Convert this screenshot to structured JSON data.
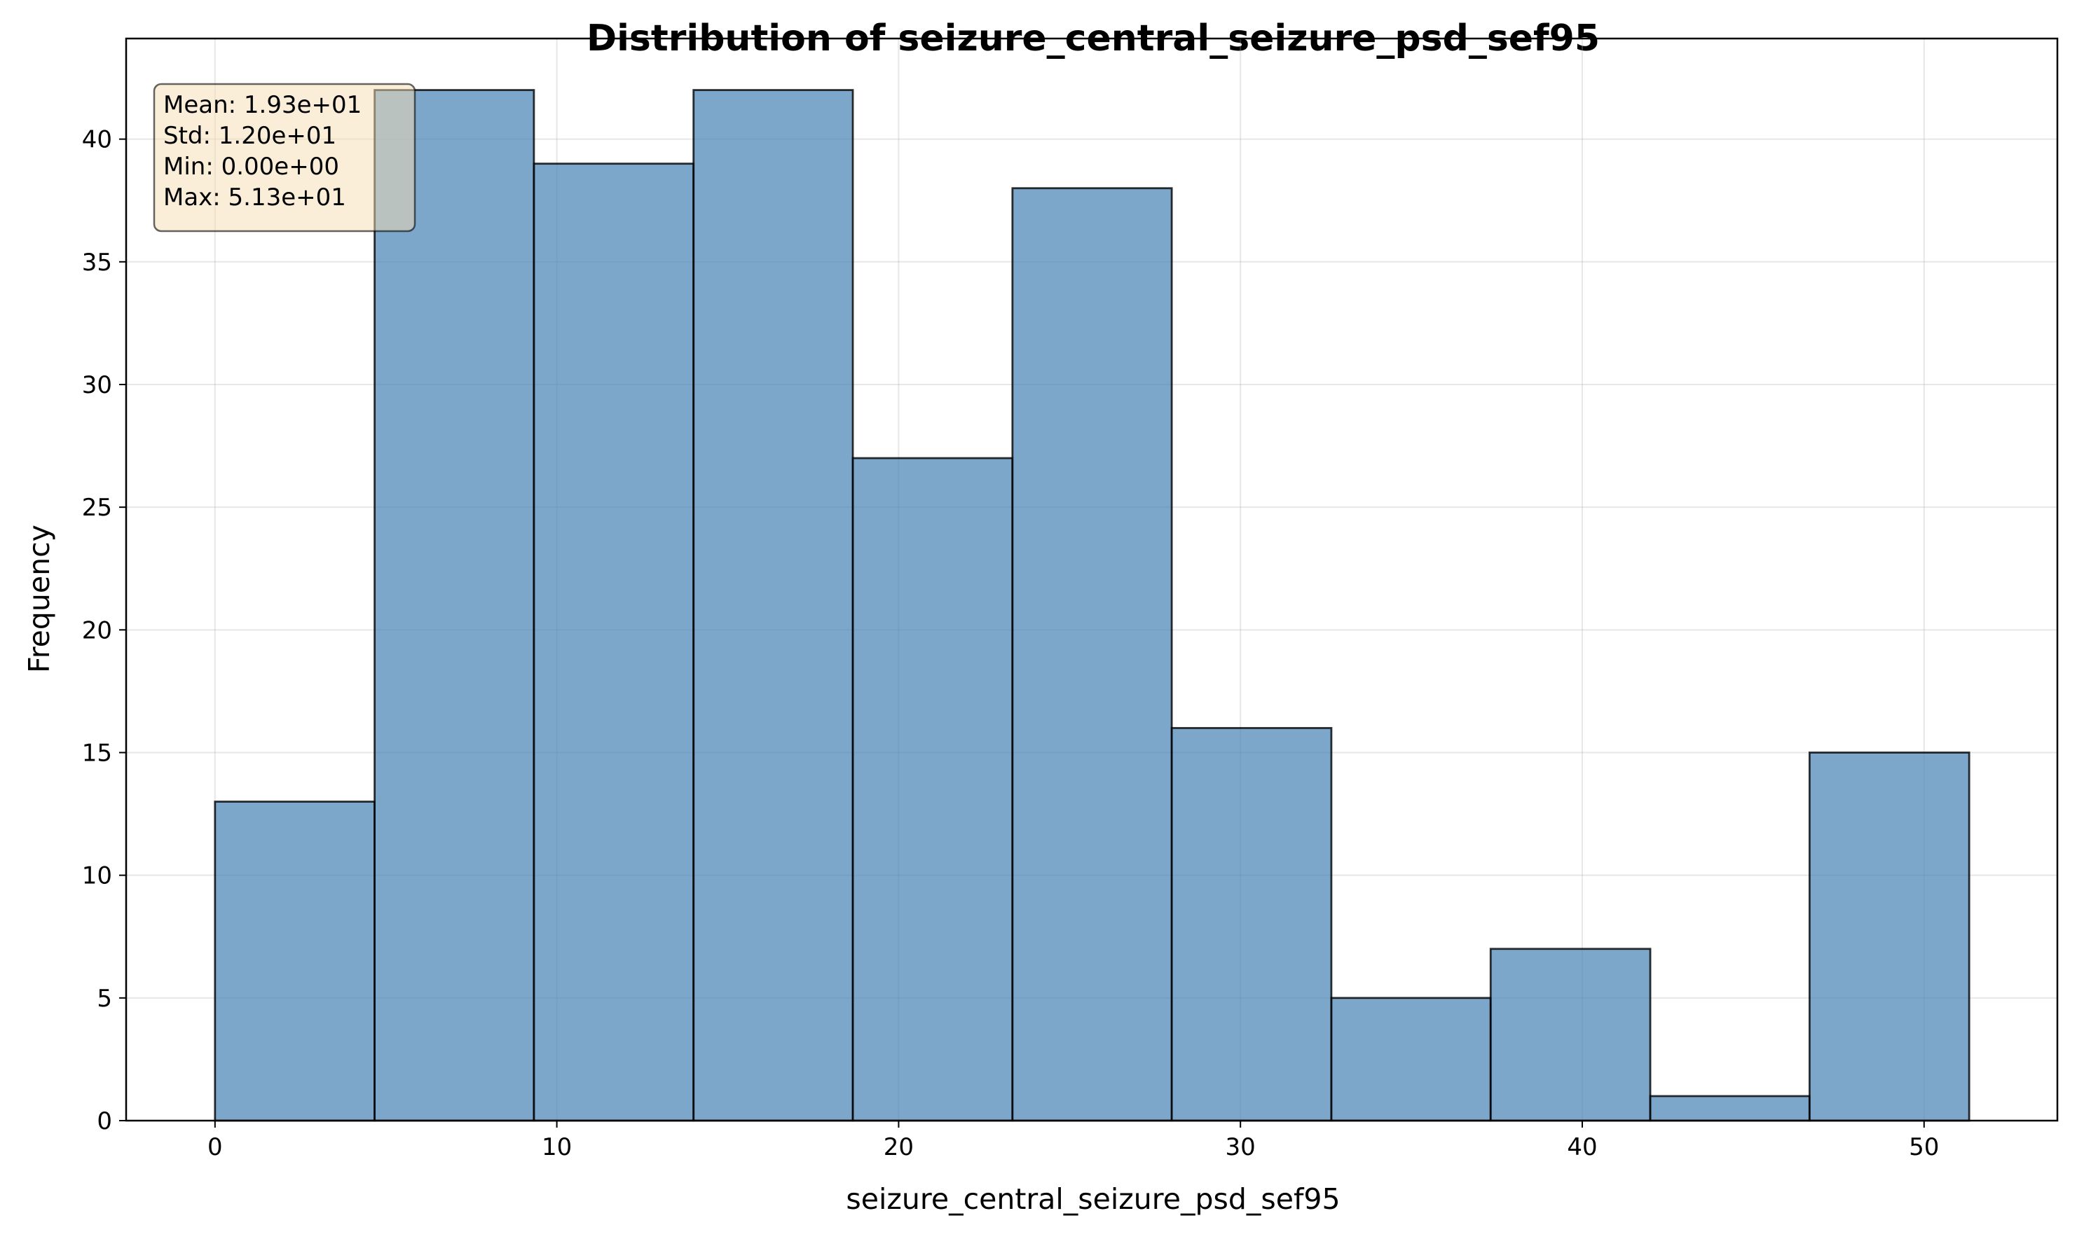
{
  "chart_data": {
    "type": "bar",
    "subtype": "histogram",
    "title": "Distribution of seizure_central_seizure_psd_sef95",
    "xlabel": "seizure_central_seizure_psd_sef95",
    "ylabel": "Frequency",
    "xlim": [
      -2.6,
      53.9
    ],
    "ylim": [
      0,
      44.1
    ],
    "xticks": [
      0,
      10,
      20,
      30,
      40,
      50
    ],
    "yticks": [
      0,
      5,
      10,
      15,
      20,
      25,
      30,
      35,
      40
    ],
    "bin_edges": [
      0.0,
      4.67,
      9.33,
      14.0,
      18.66,
      23.33,
      27.99,
      32.66,
      37.32,
      41.99,
      46.65,
      51.32
    ],
    "values": [
      13,
      42,
      39,
      42,
      27,
      38,
      16,
      5,
      7,
      1,
      15
    ],
    "grid": true,
    "bar_color": "#4682b4",
    "bar_edge_color": "#000000",
    "stats_box": {
      "lines": [
        "Mean: 1.93e+01",
        "Std: 1.20e+01",
        "Min: 0.00e+00",
        "Max: 5.13e+01"
      ],
      "position": "top-left",
      "background": "#f5deb3"
    }
  }
}
